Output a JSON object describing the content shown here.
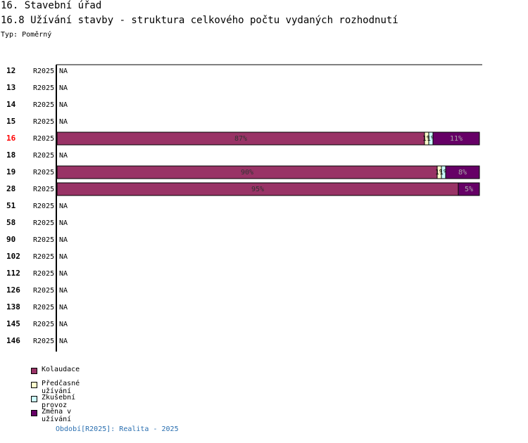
{
  "heading": "16. Stavební úřad",
  "subheading": "16.8 Užívání stavby - struktura celkového počtu vydaných rozhodnutí",
  "type_line": "Typ: Poměrný",
  "footer": "Období[R2025]: Realita - 2025",
  "colors": {
    "kolaudace": "#993366",
    "predcasne": "#ffffcc",
    "zkusebni": "#ccffff",
    "zmena": "#660066",
    "highlight_id": "#ff0000"
  },
  "legend": [
    {
      "label": "Kolaudace",
      "color": "#993366"
    },
    {
      "label": "Předčasné užívání",
      "color": "#ffffcc"
    },
    {
      "label": "Zkušební provoz",
      "color": "#ccffff"
    },
    {
      "label": "Změna v užívání",
      "color": "#660066"
    }
  ],
  "chart_data": {
    "type": "bar",
    "orientation": "horizontal",
    "stacked": true,
    "normalized": true,
    "xlim": [
      0,
      100
    ],
    "series_names": [
      "Kolaudace",
      "Předčasné užívání",
      "Zkušební provoz",
      "Změna v užívání"
    ],
    "rows": [
      {
        "id": "12",
        "period": "R2025",
        "na": "NA"
      },
      {
        "id": "13",
        "period": "R2025",
        "na": "NA"
      },
      {
        "id": "14",
        "period": "R2025",
        "na": "NA"
      },
      {
        "id": "15",
        "period": "R2025",
        "na": "NA"
      },
      {
        "id": "16",
        "period": "R2025",
        "highlight": true,
        "values": [
          87,
          1,
          1,
          11
        ],
        "labels": [
          "87%",
          "1%",
          "1%",
          "11%"
        ]
      },
      {
        "id": "18",
        "period": "R2025",
        "na": "NA"
      },
      {
        "id": "19",
        "period": "R2025",
        "values": [
          90,
          1,
          1,
          8
        ],
        "labels": [
          "90%",
          "1%",
          "1%",
          "8%"
        ]
      },
      {
        "id": "28",
        "period": "R2025",
        "values": [
          95,
          0,
          0,
          5
        ],
        "labels": [
          "95%",
          "",
          "",
          "5%"
        ]
      },
      {
        "id": "51",
        "period": "R2025",
        "na": "NA"
      },
      {
        "id": "58",
        "period": "R2025",
        "na": "NA"
      },
      {
        "id": "90",
        "period": "R2025",
        "na": "NA"
      },
      {
        "id": "102",
        "period": "R2025",
        "na": "NA"
      },
      {
        "id": "112",
        "period": "R2025",
        "na": "NA"
      },
      {
        "id": "126",
        "period": "R2025",
        "na": "NA"
      },
      {
        "id": "138",
        "period": "R2025",
        "na": "NA"
      },
      {
        "id": "145",
        "period": "R2025",
        "na": "NA"
      },
      {
        "id": "146",
        "period": "R2025",
        "na": "NA"
      }
    ]
  }
}
